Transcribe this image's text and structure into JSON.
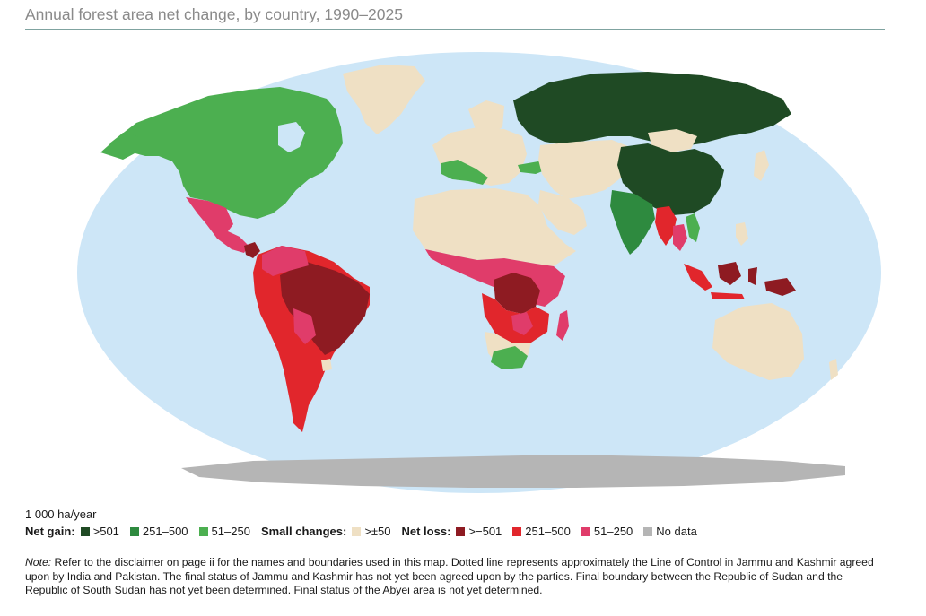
{
  "title": "Annual forest area net change, by country, 1990–2025",
  "unit_label": "1 000 ha/year",
  "colors": {
    "ocean": "#cde6f7",
    "gain_501": "#1f4a24",
    "gain_251_500": "#2e8a3f",
    "gain_51_250": "#4caf50",
    "small": "#efe0c4",
    "loss_501": "#8e1b22",
    "loss_251_500": "#e1262c",
    "loss_51_250": "#e03c6a",
    "no_data": "#b5b5b5"
  },
  "legend": {
    "net_gain": {
      "label": "Net gain:",
      "items": [
        {
          "label": ">501",
          "color": "#1f4a24"
        },
        {
          "label": "251–500",
          "color": "#2e8a3f"
        },
        {
          "label": "51–250",
          "color": "#4caf50"
        }
      ]
    },
    "small_changes": {
      "label": "Small changes:",
      "items": [
        {
          "label": ">±50",
          "color": "#efe0c4"
        }
      ]
    },
    "net_loss": {
      "label": "Net loss:",
      "items": [
        {
          "label": ">−501",
          "color": "#8e1b22"
        },
        {
          "label": "251–500",
          "color": "#e1262c"
        },
        {
          "label": "51–250",
          "color": "#e03c6a"
        }
      ]
    },
    "no_data": {
      "items": [
        {
          "label": "No data",
          "color": "#b5b5b5"
        }
      ]
    }
  },
  "note": {
    "lead": "Note:",
    "text": " Refer to the disclaimer on page ii for the names and boundaries used in this map. Dotted line represents approximately the Line of Control in Jammu and Kashmir agreed upon by India and Pakistan. The final status of Jammu and Kashmir has not yet been agreed upon by the parties. Final boundary between the Republic of Sudan and the Republic of South Sudan has not yet been determined. Final status of the Abyei area is not yet determined."
  }
}
